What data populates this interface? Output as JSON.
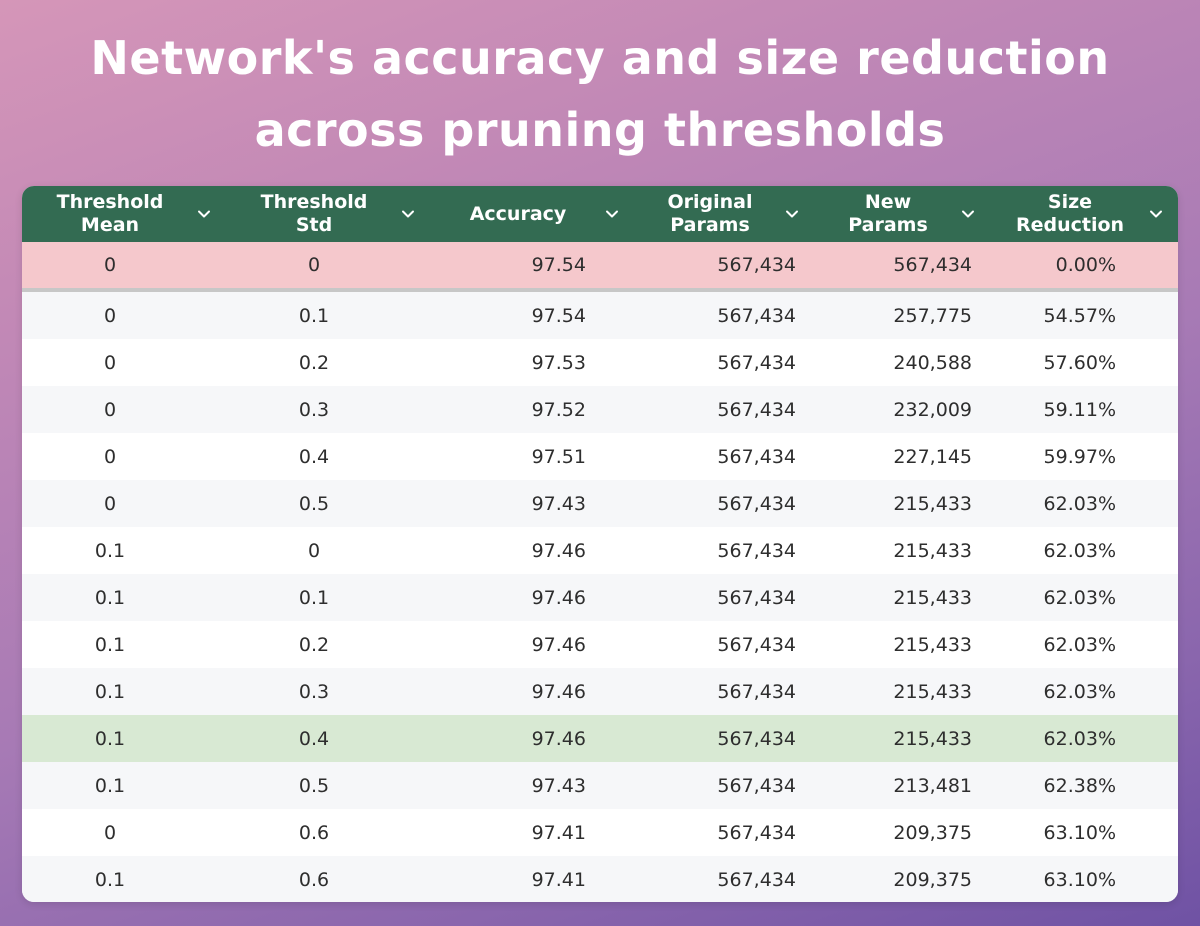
{
  "title": "Network's accuracy and size reduction across pruning thresholds",
  "colors": {
    "header_bg": "#336b52",
    "header_text": "#ffffff",
    "row_even": "#f6f7f9",
    "row_odd": "#ffffff",
    "highlight_baseline": "#f5c8cc",
    "highlight_selected": "#d8e9d3"
  },
  "icons": {
    "sort": "chevron-down-icon"
  },
  "chart_data": {
    "type": "table",
    "title": "Network's accuracy and size reduction across pruning thresholds",
    "columns": [
      {
        "key": "threshold_mean",
        "label": "Threshold\nMean"
      },
      {
        "key": "threshold_std",
        "label": "Threshold\nStd"
      },
      {
        "key": "accuracy",
        "label": "Accuracy"
      },
      {
        "key": "original_params",
        "label": "Original\nParams"
      },
      {
        "key": "new_params",
        "label": "New\nParams"
      },
      {
        "key": "size_reduction",
        "label": "Size\nReduction"
      }
    ],
    "rows": [
      {
        "threshold_mean": "0",
        "threshold_std": "0",
        "accuracy": "97.54",
        "original_params": "567,434",
        "new_params": "567,434",
        "size_reduction": "0.00%",
        "highlight": "baseline"
      },
      {
        "threshold_mean": "0",
        "threshold_std": "0.1",
        "accuracy": "97.54",
        "original_params": "567,434",
        "new_params": "257,775",
        "size_reduction": "54.57%",
        "highlight": ""
      },
      {
        "threshold_mean": "0",
        "threshold_std": "0.2",
        "accuracy": "97.53",
        "original_params": "567,434",
        "new_params": "240,588",
        "size_reduction": "57.60%",
        "highlight": ""
      },
      {
        "threshold_mean": "0",
        "threshold_std": "0.3",
        "accuracy": "97.52",
        "original_params": "567,434",
        "new_params": "232,009",
        "size_reduction": "59.11%",
        "highlight": ""
      },
      {
        "threshold_mean": "0",
        "threshold_std": "0.4",
        "accuracy": "97.51",
        "original_params": "567,434",
        "new_params": "227,145",
        "size_reduction": "59.97%",
        "highlight": ""
      },
      {
        "threshold_mean": "0",
        "threshold_std": "0.5",
        "accuracy": "97.43",
        "original_params": "567,434",
        "new_params": "215,433",
        "size_reduction": "62.03%",
        "highlight": ""
      },
      {
        "threshold_mean": "0.1",
        "threshold_std": "0",
        "accuracy": "97.46",
        "original_params": "567,434",
        "new_params": "215,433",
        "size_reduction": "62.03%",
        "highlight": ""
      },
      {
        "threshold_mean": "0.1",
        "threshold_std": "0.1",
        "accuracy": "97.46",
        "original_params": "567,434",
        "new_params": "215,433",
        "size_reduction": "62.03%",
        "highlight": ""
      },
      {
        "threshold_mean": "0.1",
        "threshold_std": "0.2",
        "accuracy": "97.46",
        "original_params": "567,434",
        "new_params": "215,433",
        "size_reduction": "62.03%",
        "highlight": ""
      },
      {
        "threshold_mean": "0.1",
        "threshold_std": "0.3",
        "accuracy": "97.46",
        "original_params": "567,434",
        "new_params": "215,433",
        "size_reduction": "62.03%",
        "highlight": ""
      },
      {
        "threshold_mean": "0.1",
        "threshold_std": "0.4",
        "accuracy": "97.46",
        "original_params": "567,434",
        "new_params": "215,433",
        "size_reduction": "62.03%",
        "highlight": "selected"
      },
      {
        "threshold_mean": "0.1",
        "threshold_std": "0.5",
        "accuracy": "97.43",
        "original_params": "567,434",
        "new_params": "213,481",
        "size_reduction": "62.38%",
        "highlight": ""
      },
      {
        "threshold_mean": "0",
        "threshold_std": "0.6",
        "accuracy": "97.41",
        "original_params": "567,434",
        "new_params": "209,375",
        "size_reduction": "63.10%",
        "highlight": ""
      },
      {
        "threshold_mean": "0.1",
        "threshold_std": "0.6",
        "accuracy": "97.41",
        "original_params": "567,434",
        "new_params": "209,375",
        "size_reduction": "63.10%",
        "highlight": ""
      }
    ]
  }
}
